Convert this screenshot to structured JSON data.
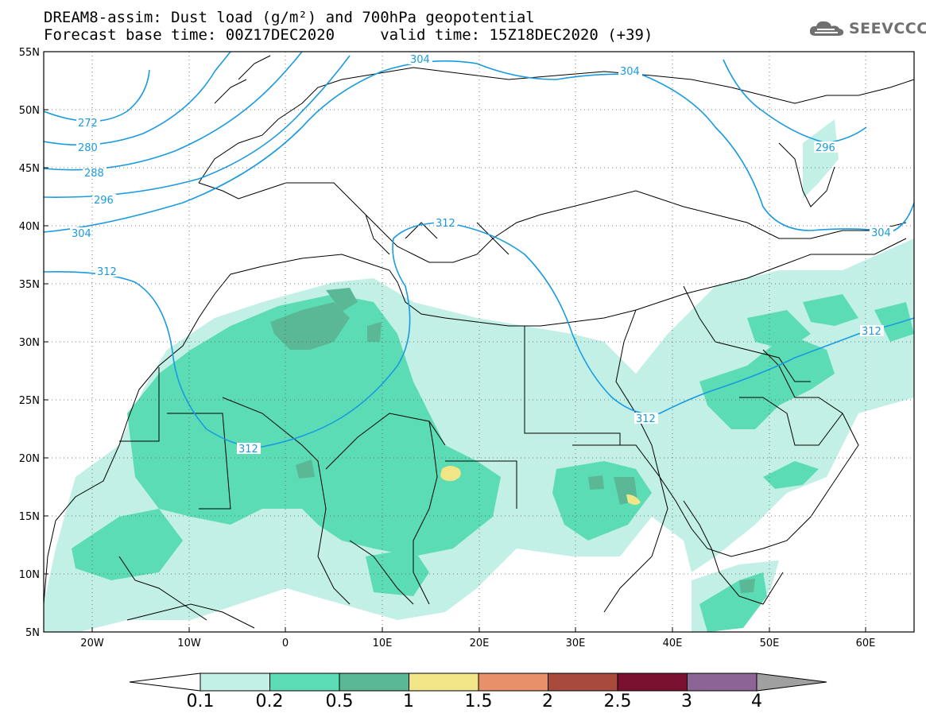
{
  "header": {
    "title_line1": "DREAM8-assim: Dust load (g/m²) and 700hPa geopotential",
    "title_line2": "Forecast base time: 00Z17DEC2020     valid time: 15Z18DEC2020 (+39)"
  },
  "logo": {
    "text": "SEEVCCC",
    "icon": "cloud-icon"
  },
  "map": {
    "lat_labels": [
      "55N",
      "50N",
      "45N",
      "40N",
      "35N",
      "30N",
      "25N",
      "20N",
      "15N",
      "10N",
      "5N"
    ],
    "lon_labels": [
      "20W",
      "10W",
      "0",
      "10E",
      "20E",
      "30E",
      "40E",
      "50E",
      "60E"
    ],
    "contour_labels": [
      "272",
      "280",
      "288",
      "296",
      "304",
      "312",
      "304",
      "304",
      "296",
      "312",
      "312",
      "312",
      "312",
      "304"
    ]
  },
  "colorbar": {
    "colors": [
      "#c2f0e6",
      "#5cdcb4",
      "#5ab896",
      "#f0e688",
      "#e8906a",
      "#a84a3c",
      "#7a1030",
      "#8c6496",
      "#a0a0a0"
    ],
    "labels": [
      "0.1",
      "0.2",
      "0.5",
      "1",
      "1.5",
      "2",
      "2.5",
      "3",
      "4"
    ]
  },
  "colors": {
    "contour": "#1a9be0",
    "coast": "#000000"
  }
}
